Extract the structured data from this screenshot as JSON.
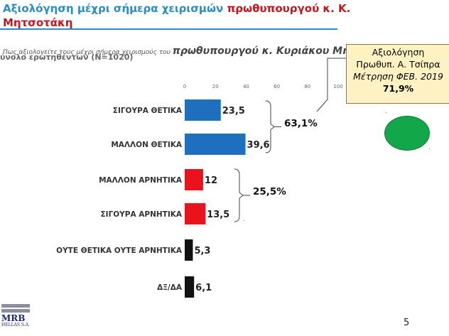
{
  "header": {
    "title_part1": "Αξιολόγηση μέχρι σήμερα χειρισμών ",
    "title_part2": "πρωθυπουργού κ. Κ. Μητσοτάκη",
    "question_prefix": "Πως αξιολογείτε τους μέχρι σήμερα  χειρισμούς του ",
    "question_bold": "πρωθυπουργού κ. Κυριάκου Μητσοτάκη",
    "sample": "ύνολο ερωτηθέντων (N=1020)"
  },
  "callout": {
    "line1": "Αξιολόγηση",
    "line2": "Πρωθυπ. Α. Τσίπρα",
    "line3": "Μέτρηση ΦΕΒ. 2019",
    "line4": "71,9%"
  },
  "groups": [
    {
      "label": "63,1%",
      "from": 0,
      "to": 1
    },
    {
      "label": "25,5%",
      "from": 2,
      "to": 3
    }
  ],
  "colors": {
    "title": "#2a8fc0",
    "title_red": "#c0181f",
    "positive": "#1f6fbf",
    "negative": "#e8131c",
    "neutral": "#111111"
  },
  "footer": {
    "logo": "MRB",
    "logo_sub": "HELLAS S.A.",
    "page": "5"
  },
  "chart_data": {
    "type": "bar",
    "orientation": "horizontal",
    "categories": [
      "ΣΙΓΟΥΡΑ ΘΕΤΙΚΑ",
      "ΜΑΛΛΟΝ ΘΕΤΙΚΑ",
      "ΜΑΛΛΟΝ ΑΡΝΗΤΙΚΑ",
      "ΣΙΓΟΥΡΑ ΑΡΝΗΤΙΚΑ",
      "ΟΥΤΕ ΘΕΤΙΚΑ ΟΥΤΕ ΑΡΝΗΤΙΚΑ",
      "ΔΞ/ΔΑ"
    ],
    "values": [
      23.5,
      39.6,
      12,
      13.5,
      5.3,
      6.1
    ],
    "value_labels": [
      "23,5",
      "39,6",
      "12",
      "13,5",
      "5,3",
      "6,1"
    ],
    "bar_colors": [
      "#1f6fbf",
      "#1f6fbf",
      "#e8131c",
      "#e8131c",
      "#111111",
      "#111111"
    ],
    "x_ticks": [
      "0",
      "20",
      "40",
      "60",
      "80",
      "100"
    ],
    "xlim": [
      0,
      100
    ],
    "grid": false
  }
}
